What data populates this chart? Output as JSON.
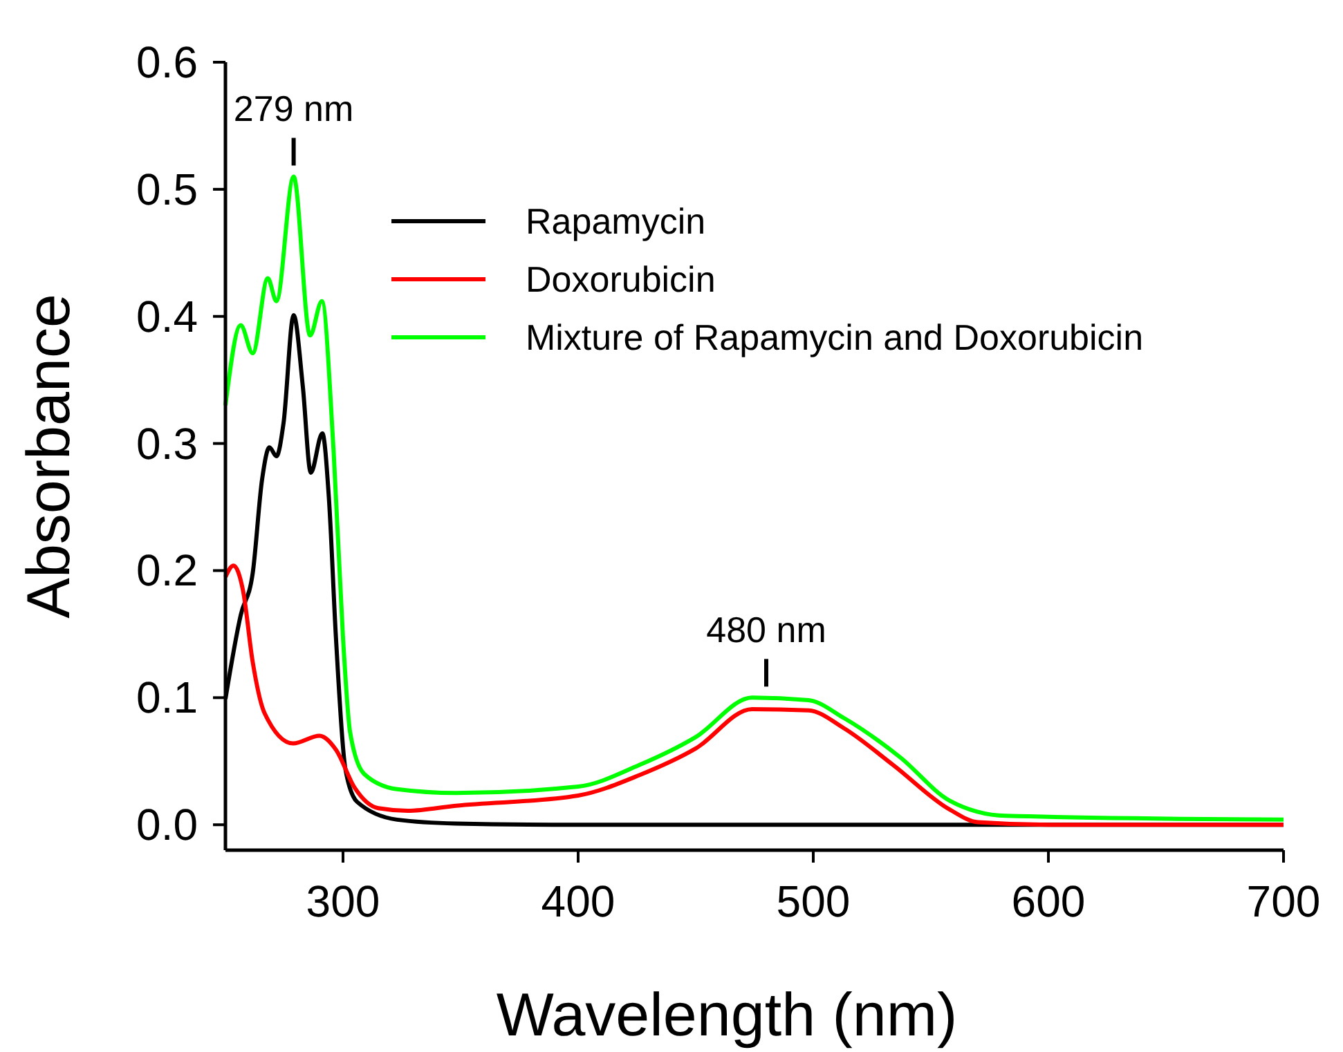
{
  "chart_data": {
    "type": "line",
    "xlabel": "Wavelength (nm)",
    "ylabel": "Absorbance",
    "xlim": [
      250,
      700
    ],
    "ylim": [
      -0.02,
      0.6
    ],
    "xticks": [
      300,
      400,
      500,
      600,
      700
    ],
    "yticks": [
      {
        "value": 0,
        "label": "0.0"
      },
      {
        "value": 0.1,
        "label": "0.1"
      },
      {
        "value": 0.2,
        "label": "0.2"
      },
      {
        "value": 0.3,
        "label": "0.3"
      },
      {
        "value": 0.4,
        "label": "0.4"
      },
      {
        "value": 0.5,
        "label": "0.5"
      },
      {
        "value": 0.6,
        "label": "0.6"
      }
    ],
    "grid": false,
    "legend": "top right",
    "line_style": "solid",
    "marker": "none",
    "annotations": [
      {
        "text": "279 nm",
        "x": 279,
        "y": 0.51
      },
      {
        "text": "480 nm",
        "x": 480,
        "y": 0.1
      }
    ],
    "series": [
      {
        "name": "Rapamycin",
        "color": "#000000",
        "x": [
          250,
          256.5,
          261.6,
          265.6,
          268.7,
          271.7,
          274.7,
          279,
          282.9,
          286.3,
          291.2,
          294,
          297,
          301,
          306,
          323,
          348,
          400,
          500,
          600,
          700
        ],
        "values": [
          0.099,
          0.165,
          0.198,
          0.272,
          0.297,
          0.29,
          0.316,
          0.401,
          0.345,
          0.277,
          0.308,
          0.257,
          0.147,
          0.044,
          0.018,
          0.004,
          0.001,
          0,
          0,
          0,
          0
        ]
      },
      {
        "name": "Doxorubicin",
        "color": "#ff0000",
        "x": [
          250,
          253.4,
          257.5,
          261.6,
          266.6,
          278.8,
          290,
          297,
          305,
          315,
          327.5,
          348,
          400,
          426,
          450,
          474,
          498,
          513,
          534,
          558,
          570,
          600,
          700
        ],
        "values": [
          0.195,
          0.204,
          0.184,
          0.128,
          0.088,
          0.064,
          0.07,
          0.059,
          0.029,
          0.013,
          0.011,
          0.015,
          0.023,
          0.039,
          0.06,
          0.091,
          0.09,
          0.076,
          0.047,
          0.012,
          0.002,
          0,
          0
        ]
      },
      {
        "name": "Mixture of Rapamycin and Doxorubicin",
        "color": "#00ff00",
        "x": [
          250,
          256.5,
          261.6,
          268,
          271.7,
          279,
          286,
          291,
          296,
          300,
          303,
          309,
          323,
          348,
          400,
          426,
          450,
          474,
          498,
          513,
          537,
          558,
          582,
          700
        ],
        "values": [
          0.33,
          0.393,
          0.371,
          0.43,
          0.412,
          0.51,
          0.385,
          0.412,
          0.294,
          0.147,
          0.073,
          0.04,
          0.028,
          0.025,
          0.03,
          0.047,
          0.069,
          0.1,
          0.098,
          0.084,
          0.053,
          0.019,
          0.007,
          0.004
        ]
      }
    ]
  }
}
